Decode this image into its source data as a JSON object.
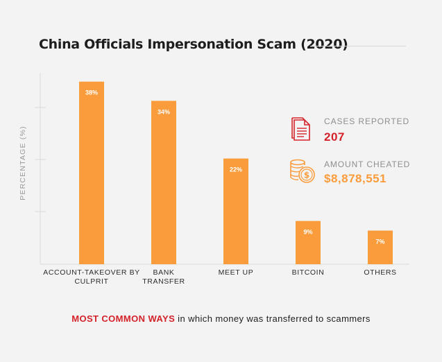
{
  "chart_data": {
    "type": "bar",
    "title": "China Officials Impersonation Scam (2020)",
    "ylabel": "PERCENTAGE (%)",
    "xlabel": "",
    "categories": [
      [
        "ACCOUNT-TAKEOVER BY",
        "CULPRIT"
      ],
      [
        "BANK",
        "TRANSFER"
      ],
      [
        "MEET UP"
      ],
      [
        "BITCOIN"
      ],
      [
        "OTHERS"
      ]
    ],
    "values": [
      38,
      34,
      22,
      9,
      7
    ],
    "value_labels": [
      "38%",
      "34%",
      "22%",
      "9%",
      "7%"
    ],
    "ylim": [
      0,
      42
    ],
    "grid": false,
    "colors": {
      "bar": "#fa9c3c",
      "bar_text": "#ffffff",
      "axis": "#d9d9d9",
      "category_text": "#2b2b2b"
    }
  },
  "stats": {
    "cases": {
      "label": "CASES REPORTED",
      "value": "207",
      "icon": "document-icon",
      "color": "#d4222a"
    },
    "amount": {
      "label": "AMOUNT CHEATED",
      "value": "$8,878,551",
      "icon": "coins-icon",
      "color": "#fa9c3c"
    }
  },
  "footer": {
    "highlight": "MOST COMMON WAYS",
    "rest": " in which money was transferred to scammers"
  }
}
